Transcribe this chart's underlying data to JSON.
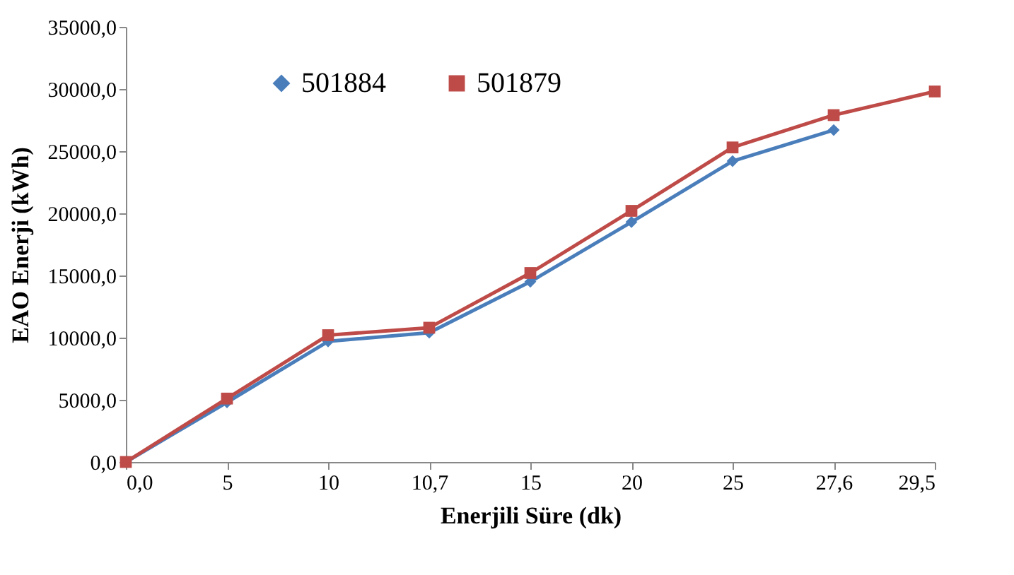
{
  "chart_data": {
    "type": "line",
    "xlabel": "Enerjili Süre (dk)",
    "ylabel": "EAO Enerji (kWh)",
    "categories": [
      "0,0",
      "5",
      "10",
      "10,7",
      "15",
      "20",
      "25",
      "27,6",
      "29,5"
    ],
    "series": [
      {
        "name": "501884",
        "color": "#4a7ebb",
        "marker": "diamond",
        "values": [
          0,
          4800,
          9700,
          10400,
          14500,
          19300,
          24200,
          26700,
          null
        ]
      },
      {
        "name": "501879",
        "color": "#be4b48",
        "marker": "square",
        "values": [
          0,
          5100,
          10200,
          10800,
          15200,
          20200,
          25300,
          27900,
          29800
        ]
      }
    ],
    "ylim": [
      0,
      35000
    ],
    "yticks": [
      {
        "value": 0,
        "label": "0,0"
      },
      {
        "value": 5000,
        "label": "5000,0"
      },
      {
        "value": 10000,
        "label": "10000,0"
      },
      {
        "value": 15000,
        "label": "15000,0"
      },
      {
        "value": 20000,
        "label": "20000,0"
      },
      {
        "value": 25000,
        "label": "25000,0"
      },
      {
        "value": 30000,
        "label": "30000,0"
      },
      {
        "value": 35000,
        "label": "35000,0"
      }
    ],
    "grid": false,
    "legend": "top",
    "line_style": "solid"
  }
}
